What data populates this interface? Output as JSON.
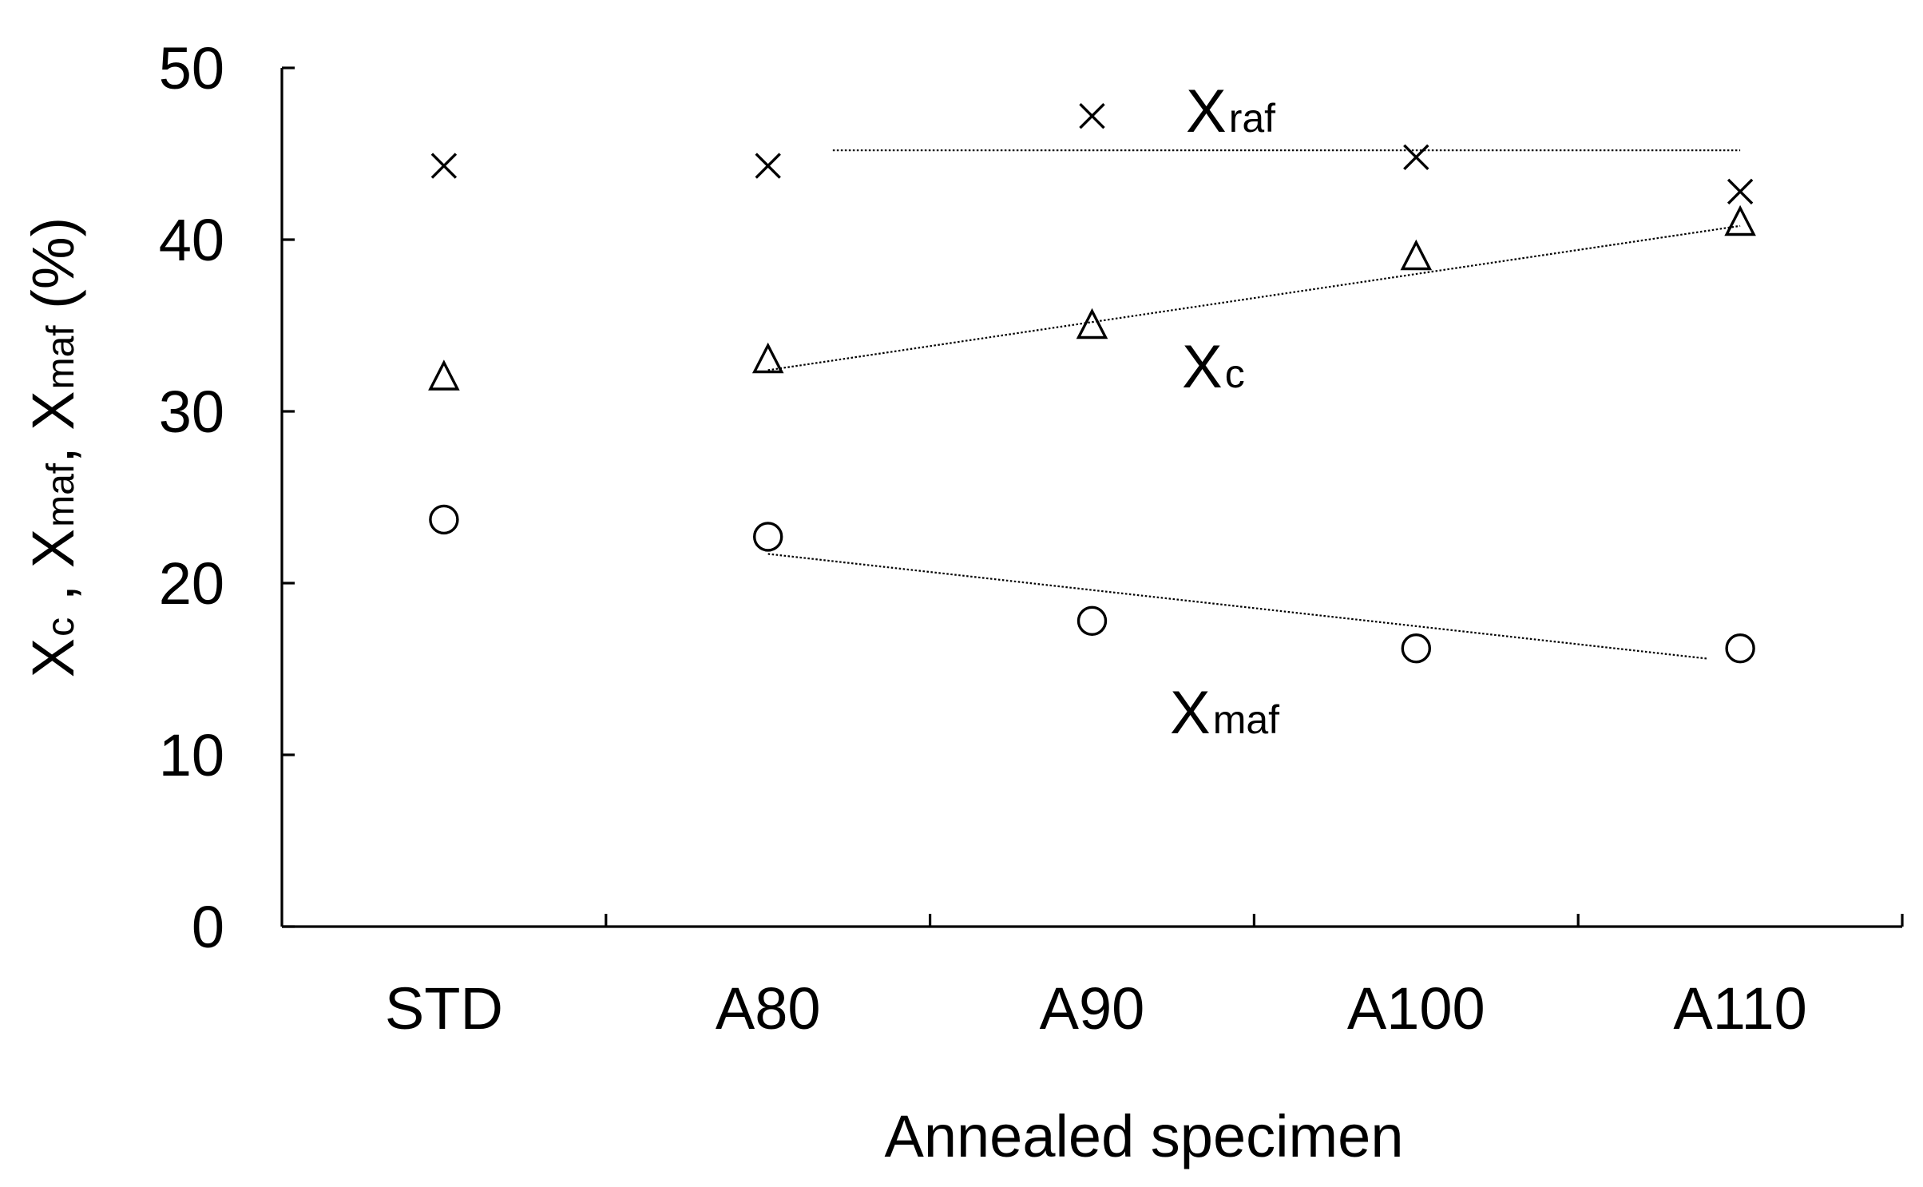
{
  "chart_data": {
    "type": "scatter",
    "title": "",
    "xlabel": "Annealed specimen",
    "ylabel": {
      "parts": [
        {
          "main": "X",
          "sub": "c"
        },
        {
          "sep": " , "
        },
        {
          "main": "X",
          "sub": "maf"
        },
        {
          "sep": ", "
        },
        {
          "main": "X",
          "sub": "maf"
        },
        {
          "sep": " (%)"
        }
      ]
    },
    "categories": [
      "STD",
      "A80",
      "A90",
      "A100",
      "A110"
    ],
    "ylim": [
      0,
      50
    ],
    "yticks": [
      0,
      10,
      20,
      30,
      40,
      50
    ],
    "ytick_labels": [
      "0",
      "10",
      "20",
      "30",
      "40",
      "50"
    ],
    "grid": false,
    "series": [
      {
        "name": "Xraf",
        "label_main": "X",
        "label_sub": "raf",
        "marker": "x",
        "values": [
          44.3,
          44.3,
          47.2,
          44.8,
          42.8
        ],
        "trend": {
          "from_category": 1.2,
          "to_category": 4,
          "y_start": 45.2,
          "y_end": 45.2
        }
      },
      {
        "name": "Xc",
        "label_main": "X",
        "label_sub": "c",
        "marker": "triangle",
        "values": [
          32.0,
          33.0,
          35.0,
          39.0,
          41.0
        ],
        "trend": {
          "from_category": 1,
          "to_category": 4,
          "y_start": 32.4,
          "y_end": 40.8
        }
      },
      {
        "name": "Xmaf",
        "label_main": "X",
        "label_sub": "maf",
        "marker": "circle",
        "values": [
          23.7,
          22.7,
          17.8,
          16.2,
          16.2
        ],
        "trend": {
          "from_category": 1,
          "to_category": 3.9,
          "y_start": 21.7,
          "y_end": 15.6
        }
      }
    ]
  }
}
